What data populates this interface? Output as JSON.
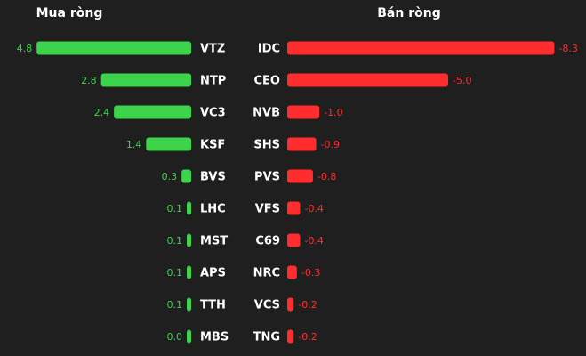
{
  "chart_data": [
    {
      "type": "bar",
      "title": "Mua ròng",
      "color": "#3dd34b",
      "categories": [
        "VTZ",
        "NTP",
        "VC3",
        "KSF",
        "BVS",
        "LHC",
        "MST",
        "APS",
        "TTH",
        "MBS"
      ],
      "values": [
        4.8,
        2.8,
        2.4,
        1.4,
        0.3,
        0.1,
        0.1,
        0.1,
        0.1,
        0.0
      ],
      "value_labels": [
        "4.8",
        "2.8",
        "2.4",
        "1.4",
        "0.3",
        "0.1",
        "0.1",
        "0.1",
        "0.1",
        "0.0"
      ]
    },
    {
      "type": "bar",
      "title": "Bán ròng",
      "color": "#ff2d2d",
      "categories": [
        "IDC",
        "CEO",
        "NVB",
        "SHS",
        "PVS",
        "VFS",
        "C69",
        "NRC",
        "VCS",
        "TNG"
      ],
      "values": [
        -8.3,
        -5.0,
        -1.0,
        -0.9,
        -0.8,
        -0.4,
        -0.4,
        -0.3,
        -0.2,
        -0.2
      ],
      "value_labels": [
        "-8.3",
        "-5.0",
        "-1.0",
        "-0.9",
        "-0.8",
        "-0.4",
        "-0.4",
        "-0.3",
        "-0.2",
        "-0.2"
      ]
    }
  ]
}
